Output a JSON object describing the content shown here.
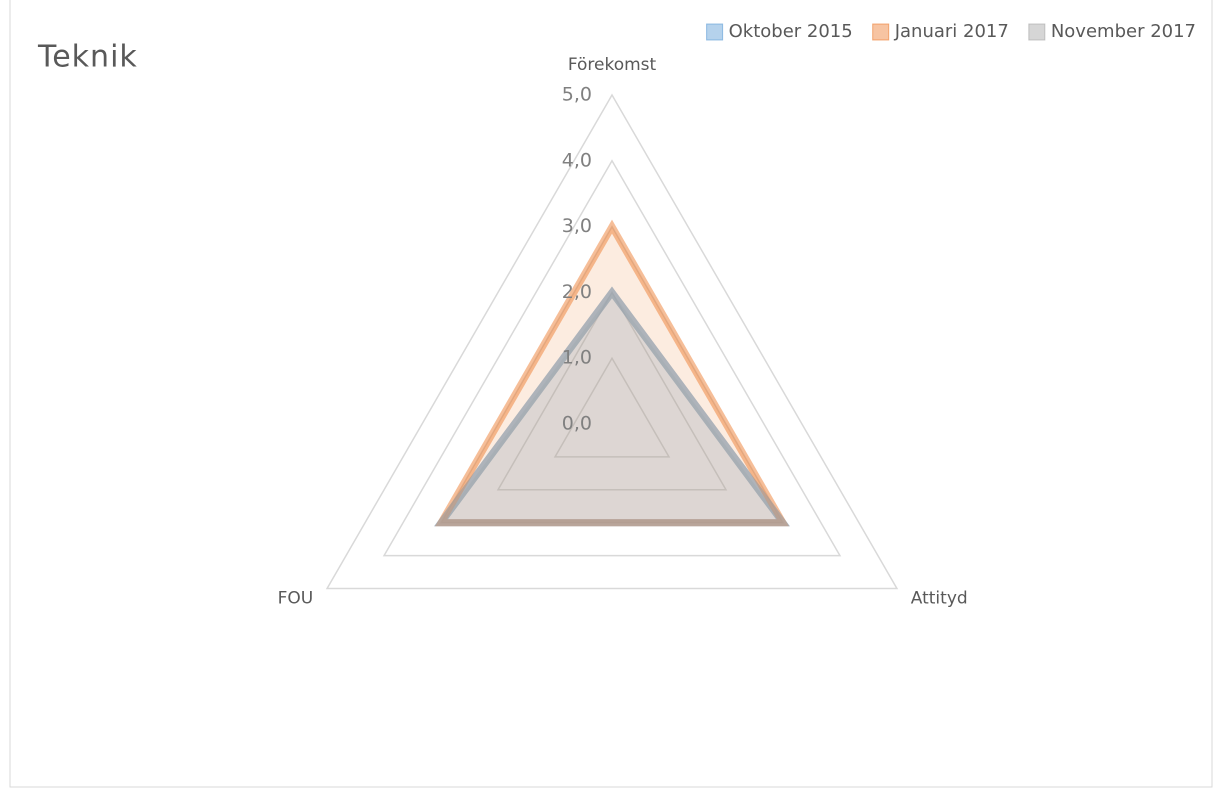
{
  "chart_data": {
    "type": "radar",
    "title": "Teknik",
    "categories": [
      "Förekomst",
      "Attityd",
      "FOU"
    ],
    "series": [
      {
        "name": "Oktober 2015",
        "color": "#5b9bd5",
        "values": [
          2,
          3,
          3
        ]
      },
      {
        "name": "Januari 2017",
        "color": "#ed7d31",
        "values": [
          3,
          3,
          3
        ]
      },
      {
        "name": "November 2017",
        "color": "#a5a5a5",
        "values": [
          2,
          3,
          3
        ]
      }
    ],
    "ylim": [
      0,
      5
    ],
    "yticks": [
      {
        "value": 0,
        "label": "0,0"
      },
      {
        "value": 1,
        "label": "1,0"
      },
      {
        "value": 2,
        "label": "2,0"
      },
      {
        "value": 3,
        "label": "3,0"
      },
      {
        "value": 4,
        "label": "4,0"
      },
      {
        "value": 5,
        "label": "5,0"
      }
    ],
    "grid": true,
    "legend": "top-right"
  }
}
